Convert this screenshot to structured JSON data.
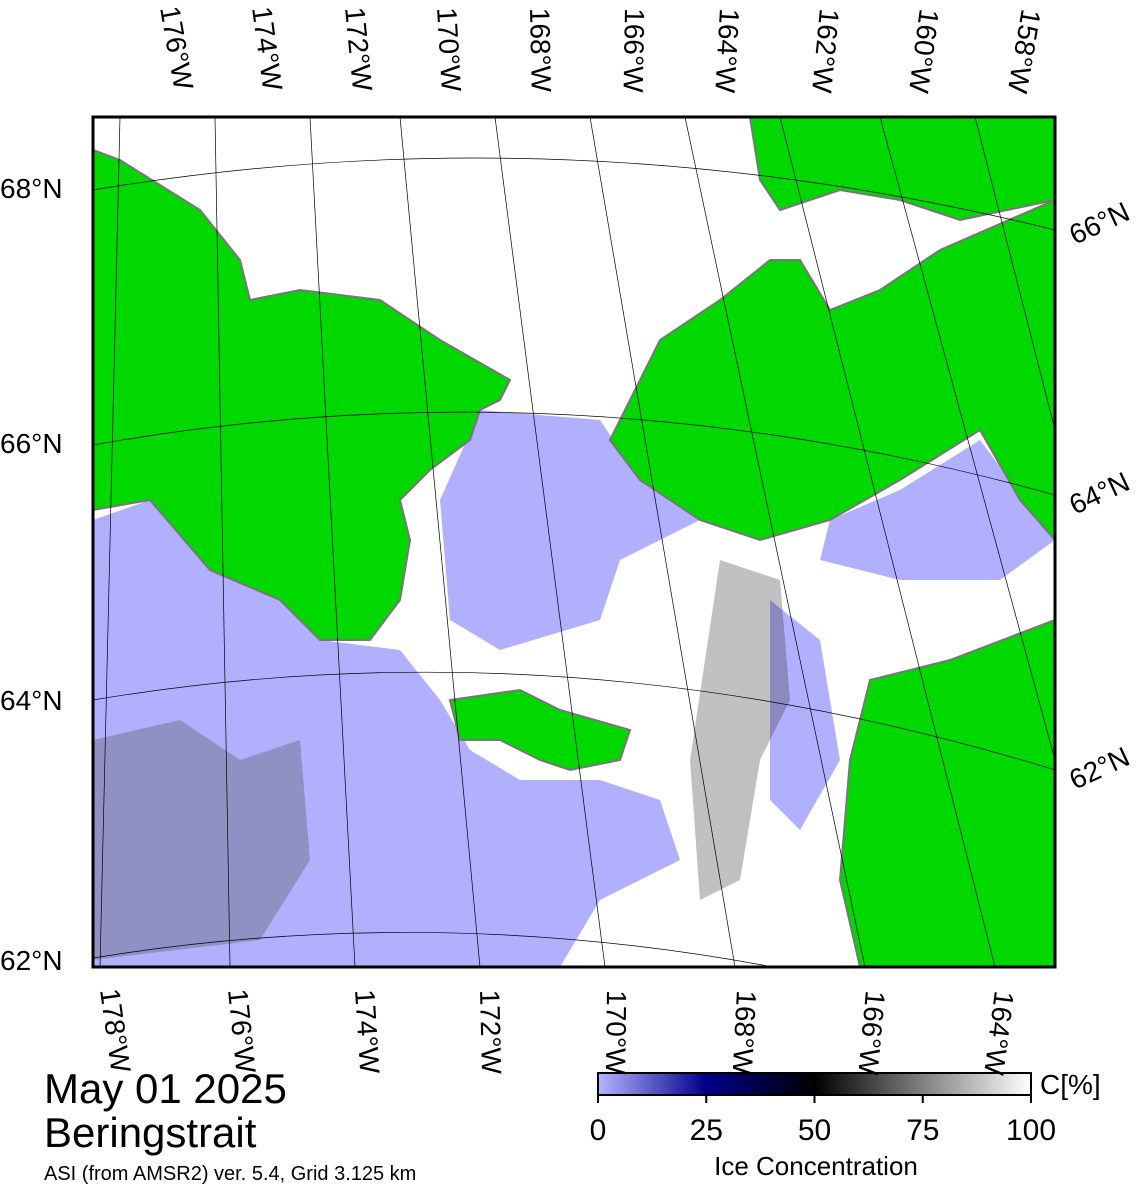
{
  "title": {
    "date": "May 01 2025",
    "region": "Beringstrait",
    "source": "ASI (from AMSR2) ver. 5.4,  Grid 3.125 km"
  },
  "map": {
    "top_lon_labels": [
      "176°W",
      "174°W",
      "172°W",
      "170°W",
      "168°W",
      "166°W",
      "164°W",
      "162°W",
      "160°W",
      "158°W"
    ],
    "bottom_lon_labels": [
      "178°W",
      "176°W",
      "174°W",
      "172°W",
      "170°W",
      "168°W",
      "166°W",
      "164°W"
    ],
    "left_lat_labels": [
      "68°N",
      "66°N",
      "64°N",
      "62°N"
    ],
    "right_lat_labels": [
      "66°N",
      "64°N",
      "62°N"
    ]
  },
  "colorbar": {
    "unit": "C[%]",
    "label": "Ice Concentration",
    "range": [
      0,
      100
    ],
    "ticks": [
      0,
      25,
      50,
      75,
      100
    ]
  }
}
